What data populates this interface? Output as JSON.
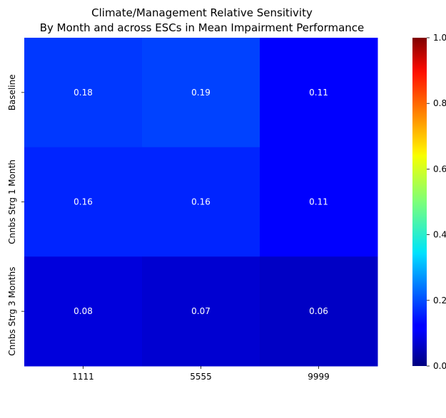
{
  "chart_data": {
    "type": "heatmap",
    "title": "Climate/Management Relative Sensitivity",
    "subtitle": "By Month and across ESCs in Mean Impairment Performance",
    "columns": [
      "1111",
      "5555",
      "9999"
    ],
    "rows": [
      "Baseline",
      "Cnnbs Strg 1 Month",
      "Cnnbs Strg 3 Months"
    ],
    "values": [
      [
        0.18,
        0.19,
        0.11
      ],
      [
        0.16,
        0.16,
        0.11
      ],
      [
        0.08,
        0.07,
        0.06
      ]
    ],
    "value_labels": [
      [
        "0.18",
        "0.19",
        "0.11"
      ],
      [
        "0.16",
        "0.16",
        "0.11"
      ],
      [
        "0.08",
        "0.07",
        "0.06"
      ]
    ],
    "colorscale": "jet",
    "colorbar": {
      "range": [
        0,
        1
      ],
      "ticks": [
        0.0,
        0.2,
        0.4,
        0.6,
        0.8,
        1.0
      ],
      "tick_labels": [
        "0.0",
        "0.2",
        "0.4",
        "0.6",
        "0.8",
        "1.0"
      ]
    },
    "xlabel": "",
    "ylabel": "",
    "grid": false
  }
}
